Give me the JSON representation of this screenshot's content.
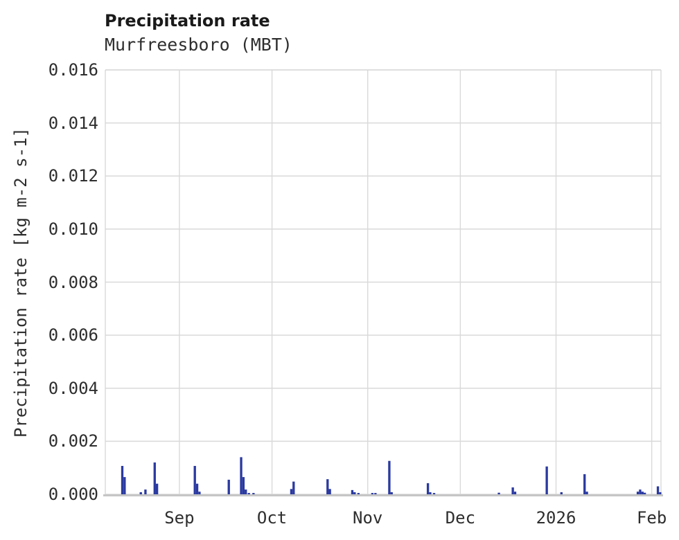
{
  "chart_data": {
    "type": "bar",
    "title": "Precipitation rate",
    "subtitle": "Murfreesboro (MBT)",
    "xlabel": "",
    "ylabel": "Precipitation rate [kg m-2 s-1]",
    "units": "kg m-2 s-1",
    "ylim": [
      0,
      0.016
    ],
    "ytick_step": 0.002,
    "ytick_labels": [
      "0.000",
      "0.002",
      "0.004",
      "0.006",
      "0.008",
      "0.010",
      "0.012",
      "0.014",
      "0.016"
    ],
    "x_range": {
      "start": "2025-08-08",
      "end": "2026-02-04"
    },
    "xticks": [
      {
        "date": "2025-09-01",
        "label": "Sep"
      },
      {
        "date": "2025-10-01",
        "label": "Oct"
      },
      {
        "date": "2025-11-01",
        "label": "Nov"
      },
      {
        "date": "2025-12-01",
        "label": "Dec"
      },
      {
        "date": "2026-01-01",
        "label": "2026"
      },
      {
        "date": "2026-02-01",
        "label": "Feb"
      }
    ],
    "grid": true,
    "legend": false,
    "bar_color": "#2b3aa0",
    "grid_color": "#d9d9d9",
    "axis_color": "#c6c6c6",
    "bar_width_days": 0.75,
    "series": [
      {
        "name": "precipitation_rate",
        "points": [
          {
            "t": "2025-08-13T12:00",
            "v": 0.00107
          },
          {
            "t": "2025-08-14T06:00",
            "v": 0.00065
          },
          {
            "t": "2025-08-19T12:00",
            "v": 8e-05
          },
          {
            "t": "2025-08-21T00:00",
            "v": 0.00018
          },
          {
            "t": "2025-08-24T00:00",
            "v": 0.0012
          },
          {
            "t": "2025-08-24T18:00",
            "v": 0.0004
          },
          {
            "t": "2025-09-06T00:00",
            "v": 0.00107
          },
          {
            "t": "2025-09-06T18:00",
            "v": 0.0004
          },
          {
            "t": "2025-09-07T12:00",
            "v": 0.0001
          },
          {
            "t": "2025-09-17T00:00",
            "v": 0.00055
          },
          {
            "t": "2025-09-21T00:00",
            "v": 0.0014
          },
          {
            "t": "2025-09-21T18:00",
            "v": 0.00065
          },
          {
            "t": "2025-09-22T12:00",
            "v": 0.00018
          },
          {
            "t": "2025-09-23T12:00",
            "v": 5e-05
          },
          {
            "t": "2025-09-25T00:00",
            "v": 5e-05
          },
          {
            "t": "2025-10-07T06:00",
            "v": 0.0002
          },
          {
            "t": "2025-10-08T00:00",
            "v": 0.00048
          },
          {
            "t": "2025-10-19T00:00",
            "v": 0.00057
          },
          {
            "t": "2025-10-19T18:00",
            "v": 0.0002
          },
          {
            "t": "2025-10-27T00:00",
            "v": 0.00016
          },
          {
            "t": "2025-10-27T18:00",
            "v": 8e-05
          },
          {
            "t": "2025-10-29T00:00",
            "v": 5e-05
          },
          {
            "t": "2025-11-02T12:00",
            "v": 5e-05
          },
          {
            "t": "2025-11-03T12:00",
            "v": 5e-05
          },
          {
            "t": "2025-11-08T00:00",
            "v": 0.00126
          },
          {
            "t": "2025-11-08T18:00",
            "v": 8e-05
          },
          {
            "t": "2025-11-20T12:00",
            "v": 0.00042
          },
          {
            "t": "2025-11-21T06:00",
            "v": 8e-05
          },
          {
            "t": "2025-11-22T12:00",
            "v": 5e-05
          },
          {
            "t": "2025-12-13T12:00",
            "v": 6e-05
          },
          {
            "t": "2025-12-18T00:00",
            "v": 0.00026
          },
          {
            "t": "2025-12-18T18:00",
            "v": 0.0001
          },
          {
            "t": "2025-12-29T00:00",
            "v": 0.00105
          },
          {
            "t": "2026-01-02T18:00",
            "v": 8e-05
          },
          {
            "t": "2026-01-10T06:00",
            "v": 0.00076
          },
          {
            "t": "2026-01-11T00:00",
            "v": 0.0001
          },
          {
            "t": "2026-01-27T12:00",
            "v": 0.0001
          },
          {
            "t": "2026-01-28T06:00",
            "v": 0.00018
          },
          {
            "t": "2026-01-29T00:00",
            "v": 0.0001
          },
          {
            "t": "2026-01-29T18:00",
            "v": 6e-05
          },
          {
            "t": "2026-02-03T00:00",
            "v": 0.0003
          },
          {
            "t": "2026-02-03T18:00",
            "v": 8e-05
          }
        ]
      }
    ]
  }
}
